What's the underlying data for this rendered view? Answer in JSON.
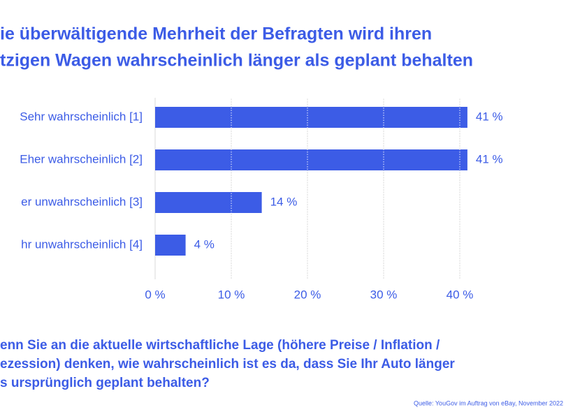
{
  "chart_data": {
    "type": "bar",
    "orientation": "horizontal",
    "title": [
      "ie überwältigende Mehrheit der Befragten wird ihren",
      "tzigen Wagen wahrscheinlich länger als geplant behalten"
    ],
    "categories": [
      "Sehr wahrscheinlich [1]",
      "Eher wahrscheinlich [2]",
      "er unwahrscheinlich [3]",
      "hr unwahrscheinlich [4]"
    ],
    "values": [
      41,
      41,
      14,
      4
    ],
    "value_labels": [
      "41 %",
      "41 %",
      "14 %",
      "4 %"
    ],
    "color": "#3c5ce6",
    "xlim": [
      0,
      40
    ],
    "xticks": [
      {
        "value": 0,
        "label": "0 %"
      },
      {
        "value": 10,
        "label": "10 %"
      },
      {
        "value": 20,
        "label": "20 %"
      },
      {
        "value": 30,
        "label": "30 %"
      },
      {
        "value": 40,
        "label": "40 %"
      }
    ],
    "grid": true,
    "question": [
      "enn Sie an die aktuelle wirtschaftliche Lage (höhere Preise / Inflation /",
      "ezession) denken, wie wahrscheinlich ist es da, dass Sie Ihr Auto länger",
      "s ursprünglich geplant behalten?"
    ],
    "source": "Quelle: YouGov im Auftrag von eBay, November 2022"
  }
}
